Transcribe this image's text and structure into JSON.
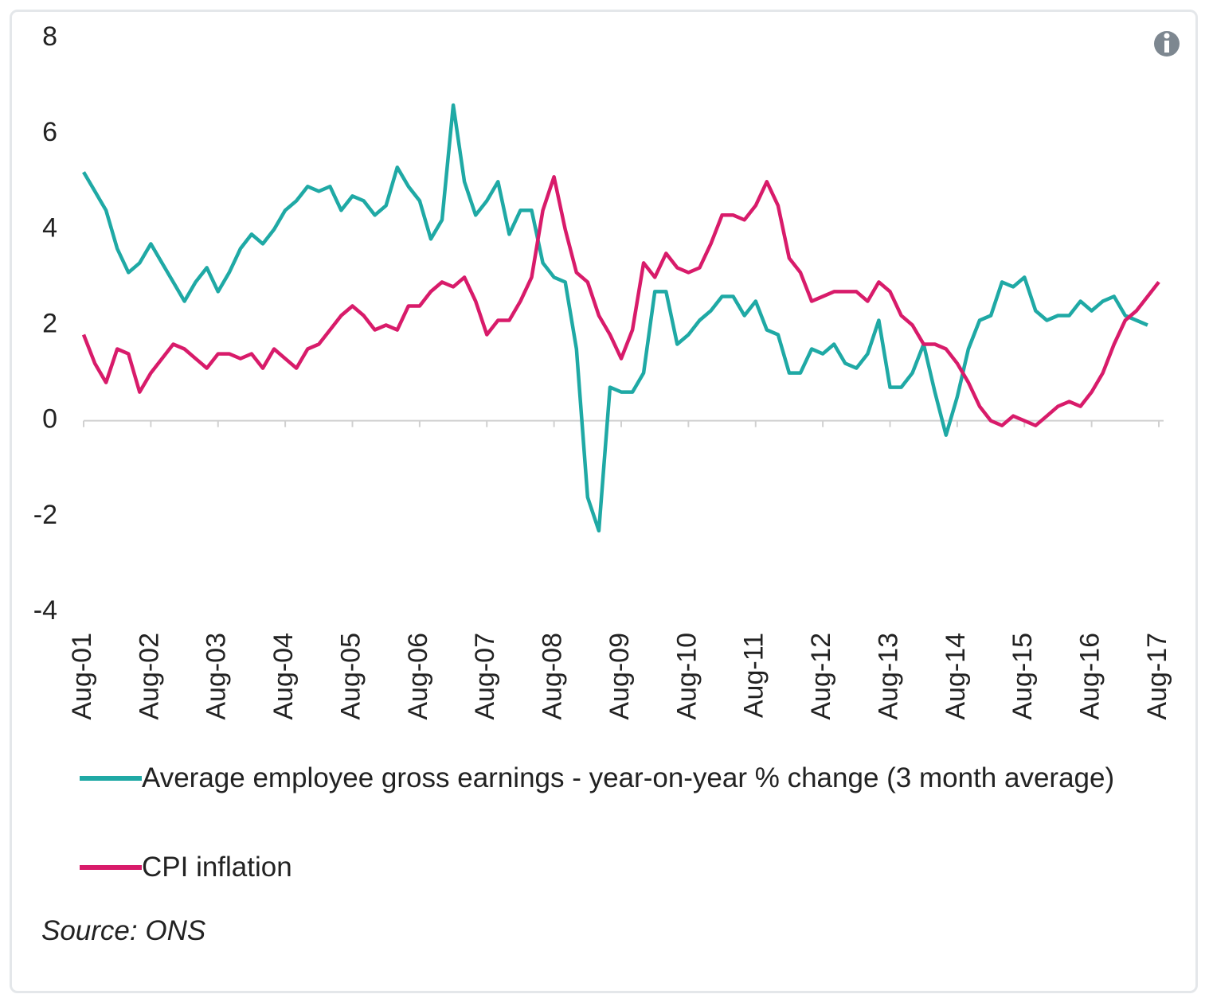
{
  "chart_data": {
    "type": "line",
    "categories": [
      "Aug-01",
      null,
      null,
      null,
      null,
      null,
      "Aug-02",
      null,
      null,
      null,
      null,
      null,
      "Aug-03",
      null,
      null,
      null,
      null,
      null,
      "Aug-04",
      null,
      null,
      null,
      null,
      null,
      "Aug-05",
      null,
      null,
      null,
      null,
      null,
      "Aug-06",
      null,
      null,
      null,
      null,
      null,
      "Aug-07",
      null,
      null,
      null,
      null,
      null,
      "Aug-08",
      null,
      null,
      null,
      null,
      null,
      "Aug-09",
      null,
      null,
      null,
      null,
      null,
      "Aug-10",
      null,
      null,
      null,
      null,
      null,
      "Aug-11",
      null,
      null,
      null,
      null,
      null,
      "Aug-12",
      null,
      null,
      null,
      null,
      null,
      "Aug-13",
      null,
      null,
      null,
      null,
      null,
      "Aug-14",
      null,
      null,
      null,
      null,
      null,
      "Aug-15",
      null,
      null,
      null,
      null,
      null,
      "Aug-16",
      null,
      null,
      null,
      null,
      null,
      "Aug-17"
    ],
    "series": [
      {
        "name": "Average employee gross earnings - year-on-year % change (3 month average)",
        "color": "#1fa9a5",
        "values": [
          5.2,
          4.8,
          4.4,
          3.6,
          3.1,
          3.3,
          3.7,
          3.3,
          2.9,
          2.5,
          2.9,
          3.2,
          2.7,
          3.1,
          3.6,
          3.9,
          3.7,
          4.0,
          4.4,
          4.6,
          4.9,
          4.8,
          4.9,
          4.4,
          4.7,
          4.6,
          4.3,
          4.5,
          5.3,
          4.9,
          4.6,
          3.8,
          4.2,
          6.6,
          5.0,
          4.3,
          4.6,
          5.0,
          3.9,
          4.4,
          4.4,
          3.3,
          3.0,
          2.9,
          1.5,
          -1.6,
          -2.3,
          0.7,
          0.6,
          0.6,
          1.0,
          2.7,
          2.7,
          1.6,
          1.8,
          2.1,
          2.3,
          2.6,
          2.6,
          2.2,
          2.5,
          1.9,
          1.8,
          1.0,
          1.0,
          1.5,
          1.4,
          1.6,
          1.2,
          1.1,
          1.4,
          2.1,
          0.7,
          0.7,
          1.0,
          1.6,
          0.6,
          -0.3,
          0.5,
          1.5,
          2.1,
          2.2,
          2.9,
          2.8,
          3.0,
          2.3,
          2.1,
          2.2,
          2.2,
          2.5,
          2.3,
          2.5,
          2.6,
          2.2,
          2.1,
          2.0,
          null
        ]
      },
      {
        "name": "CPI inflation",
        "color": "#d81b6a",
        "values": [
          1.8,
          1.2,
          0.8,
          1.5,
          1.4,
          0.6,
          1.0,
          1.3,
          1.6,
          1.5,
          1.3,
          1.1,
          1.4,
          1.4,
          1.3,
          1.4,
          1.1,
          1.5,
          1.3,
          1.1,
          1.5,
          1.6,
          1.9,
          2.2,
          2.4,
          2.2,
          1.9,
          2.0,
          1.9,
          2.4,
          2.4,
          2.7,
          2.9,
          2.8,
          3.0,
          2.5,
          1.8,
          2.1,
          2.1,
          2.5,
          3.0,
          4.4,
          5.1,
          4.0,
          3.1,
          2.9,
          2.2,
          1.8,
          1.3,
          1.9,
          3.3,
          3.0,
          3.5,
          3.2,
          3.1,
          3.2,
          3.7,
          4.3,
          4.3,
          4.2,
          4.5,
          5.0,
          4.5,
          3.4,
          3.1,
          2.5,
          2.6,
          2.7,
          2.7,
          2.7,
          2.5,
          2.9,
          2.7,
          2.2,
          2.0,
          1.6,
          1.6,
          1.5,
          1.2,
          0.8,
          0.3,
          0.0,
          -0.1,
          0.1,
          0.0,
          -0.1,
          0.1,
          0.3,
          0.4,
          0.3,
          0.6,
          1.0,
          1.6,
          2.1,
          2.3,
          2.6,
          2.9
        ]
      }
    ],
    "ylim": [
      -4,
      8
    ],
    "yticks": [
      -4,
      -2,
      0,
      2,
      4,
      6,
      8
    ],
    "grid": false,
    "source": "Source: ONS"
  }
}
